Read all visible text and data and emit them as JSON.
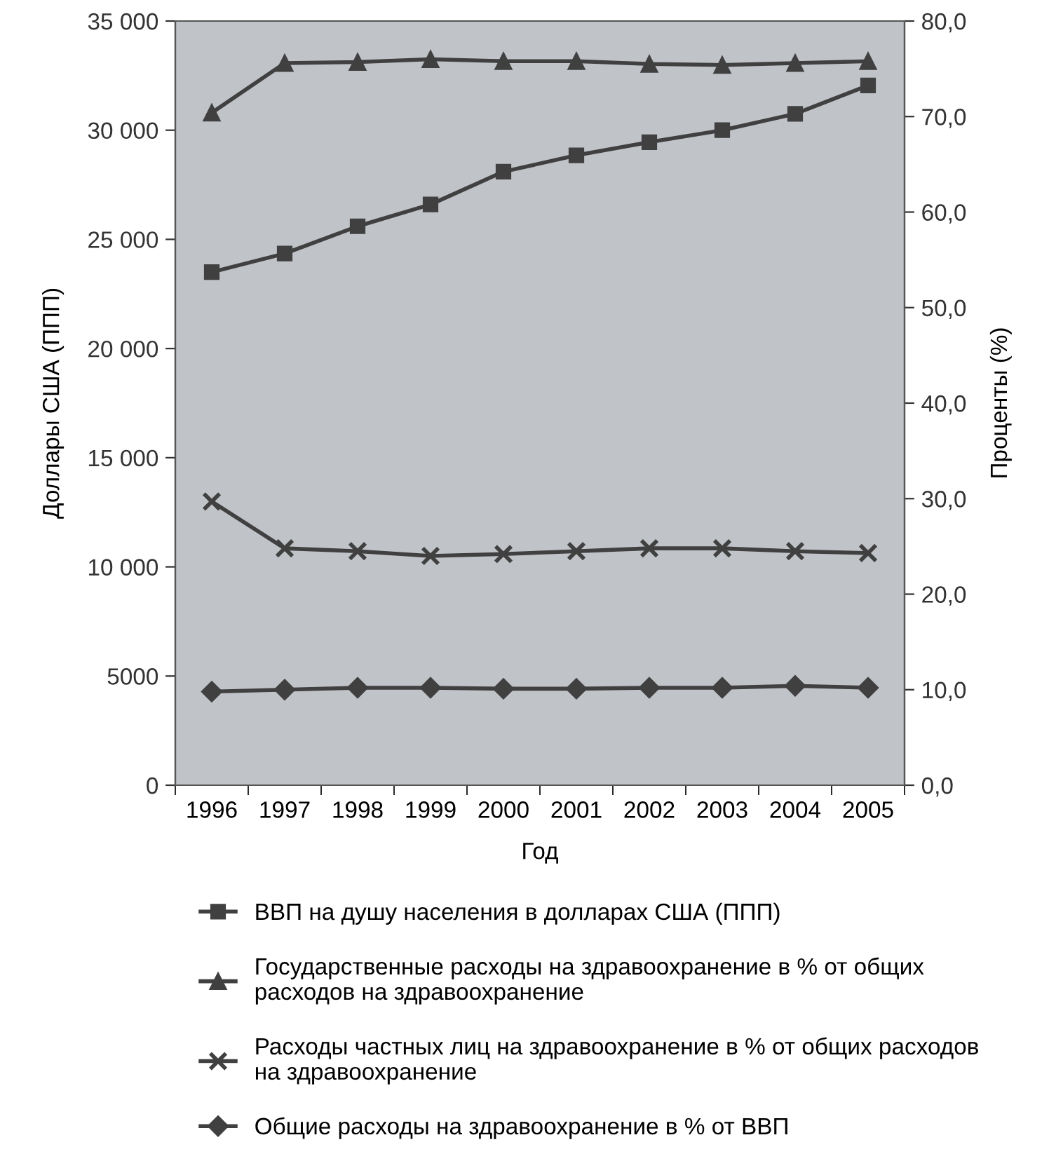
{
  "chart_data": {
    "type": "line",
    "xlabel": "Год",
    "ylabel": "Доллары США (ППП)",
    "y2label": "Проценты (%)",
    "categories": [
      "1996",
      "1997",
      "1998",
      "1999",
      "2000",
      "2001",
      "2002",
      "2003",
      "2004",
      "2005"
    ],
    "series": [
      {
        "name": "ВВП на душу населения в долларах США (ППП)",
        "color": "#404040",
        "marker": "square",
        "values": [
          23500,
          24350,
          25600,
          26600,
          28100,
          28850,
          29450,
          30000,
          30750,
          32050
        ]
      },
      {
        "name": "Государственные расходы на здравоохранение в % от общих\nрасходов на здравоохранение",
        "color": "#404040",
        "marker": "triangle",
        "axis": "y2",
        "values": [
          70.4,
          75.6,
          75.7,
          76.0,
          75.8,
          75.8,
          75.5,
          75.4,
          75.6,
          75.8
        ]
      },
      {
        "name": "Расходы частных лиц на здравоохранение в % от общих расходов\nна здравоохранение",
        "color": "#404040",
        "marker": "cross",
        "axis": "y2",
        "values": [
          29.7,
          24.8,
          24.5,
          24.0,
          24.2,
          24.5,
          24.8,
          24.8,
          24.5,
          24.3
        ]
      },
      {
        "name": "Общие расходы на здравоохранение в % от ВВП",
        "color": "#404040",
        "marker": "diamond",
        "axis": "y2",
        "values": [
          9.8,
          10.0,
          10.2,
          10.2,
          10.1,
          10.1,
          10.2,
          10.2,
          10.4,
          10.2
        ]
      }
    ],
    "ylim": [
      0,
      35000
    ],
    "yticks": [
      0,
      {
        "value": 5000,
        "label": "5000"
      },
      {
        "value": 10000,
        "label": "10 000"
      },
      {
        "value": 15000,
        "label": "15 000"
      },
      {
        "value": 20000,
        "label": "20 000"
      },
      {
        "value": 25000,
        "label": "25 000"
      },
      {
        "value": 30000,
        "label": "30 000"
      },
      {
        "value": 35000,
        "label": "35 000"
      }
    ],
    "y2lim": [
      0,
      80
    ],
    "y2ticks": [
      {
        "value": 0,
        "label": "0,0"
      },
      {
        "value": 10,
        "label": "10,0"
      },
      {
        "value": 20,
        "label": "20,0"
      },
      {
        "value": 30,
        "label": "30,0"
      },
      {
        "value": 40,
        "label": "40,0"
      },
      {
        "value": 50,
        "label": "50,0"
      },
      {
        "value": 60,
        "label": "60,0"
      },
      {
        "value": 70,
        "label": "70,0"
      },
      {
        "value": 80,
        "label": "80,0"
      }
    ],
    "grid": false,
    "legend": "bottom",
    "line_style": "solid"
  }
}
